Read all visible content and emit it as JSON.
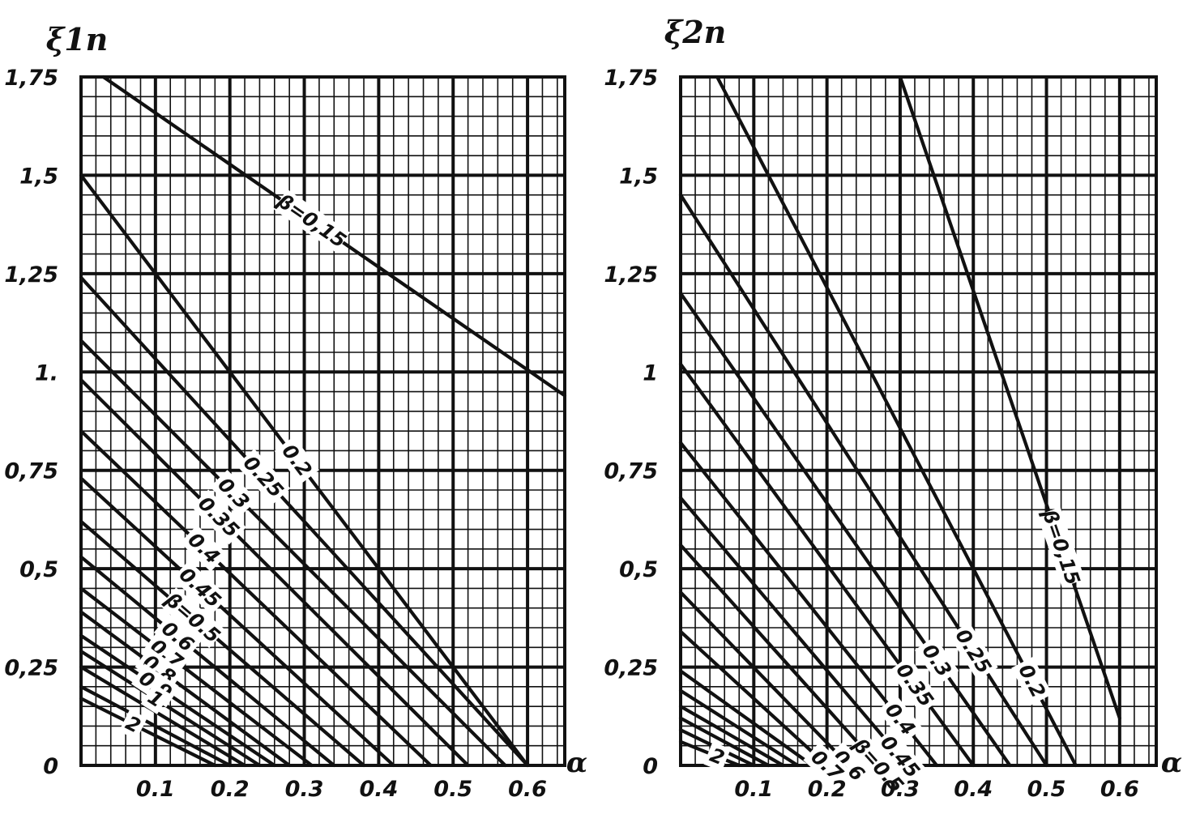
{
  "chart_data": [
    {
      "type": "line",
      "title": "",
      "ylabel": "ξ1п",
      "xlabel": "α",
      "xlim": [
        0,
        0.65
      ],
      "ylim": [
        0,
        1.75
      ],
      "x_ticks": [
        "0.1",
        "0.2",
        "0.3",
        "0.4",
        "0.5",
        "0.6"
      ],
      "y_ticks": [
        "0",
        "0,25",
        "0,5",
        "0,75",
        "1.",
        "1,25",
        "1,5",
        "1,75"
      ],
      "grid": true,
      "series": [
        {
          "label": "β=0,15",
          "x": [
            0.03,
            0.65
          ],
          "y": [
            1.75,
            0.94
          ]
        },
        {
          "label": "0.2",
          "x": [
            0.0,
            0.6
          ],
          "y": [
            1.5,
            0.0
          ]
        },
        {
          "label": "0.25",
          "x": [
            0.0,
            0.6
          ],
          "y": [
            1.24,
            0.0
          ]
        },
        {
          "label": "0.3",
          "x": [
            0.0,
            0.57
          ],
          "y": [
            1.08,
            0.0
          ]
        },
        {
          "label": "0.35",
          "x": [
            0.0,
            0.52
          ],
          "y": [
            0.98,
            0.0
          ]
        },
        {
          "label": "0.4",
          "x": [
            0.0,
            0.47
          ],
          "y": [
            0.85,
            0.0
          ]
        },
        {
          "label": "0.45",
          "x": [
            0.0,
            0.42
          ],
          "y": [
            0.73,
            0.0
          ]
        },
        {
          "label": "β=0.5",
          "x": [
            0.0,
            0.38
          ],
          "y": [
            0.62,
            0.0
          ]
        },
        {
          "label": "0.6",
          "x": [
            0.0,
            0.34
          ],
          "y": [
            0.53,
            0.0
          ]
        },
        {
          "label": "0.7",
          "x": [
            0.0,
            0.31
          ],
          "y": [
            0.45,
            0.0
          ]
        },
        {
          "label": "0.8",
          "x": [
            0.0,
            0.28
          ],
          "y": [
            0.39,
            0.0
          ]
        },
        {
          "label": "0.9",
          "x": [
            0.0,
            0.26
          ],
          "y": [
            0.33,
            0.0
          ]
        },
        {
          "label": "1",
          "x": [
            0.0,
            0.24
          ],
          "y": [
            0.29,
            0.0
          ]
        },
        {
          "label": "",
          "x": [
            0.0,
            0.22
          ],
          "y": [
            0.25,
            0.0
          ]
        },
        {
          "label": "",
          "x": [
            0.0,
            0.2
          ],
          "y": [
            0.2,
            0.0
          ]
        },
        {
          "label": "2",
          "x": [
            0.0,
            0.18
          ],
          "y": [
            0.17,
            0.0
          ]
        }
      ]
    },
    {
      "type": "line",
      "title": "",
      "ylabel": "ξ2п",
      "xlabel": "α",
      "xlim": [
        0,
        0.65
      ],
      "ylim": [
        0,
        1.75
      ],
      "x_ticks": [
        "0.1",
        "0.2",
        "0.3",
        "0.4",
        "0.5",
        "0.6"
      ],
      "y_ticks": [
        "0",
        "0,25",
        "0,5",
        "0,75",
        "1",
        "1,25",
        "1,5",
        "1,75"
      ],
      "grid": true,
      "series": [
        {
          "label": "β=0,15",
          "x": [
            0.3,
            0.6
          ],
          "y": [
            1.75,
            0.12
          ]
        },
        {
          "label": "0.2",
          "x": [
            0.05,
            0.54
          ],
          "y": [
            1.75,
            0.0
          ]
        },
        {
          "label": "0.25",
          "x": [
            0.0,
            0.5
          ],
          "y": [
            1.45,
            0.0
          ]
        },
        {
          "label": "0.3",
          "x": [
            0.0,
            0.45
          ],
          "y": [
            1.2,
            0.0
          ]
        },
        {
          "label": "0.35",
          "x": [
            0.0,
            0.4
          ],
          "y": [
            1.02,
            0.0
          ]
        },
        {
          "label": "0.4",
          "x": [
            0.0,
            0.35
          ],
          "y": [
            0.82,
            0.0
          ]
        },
        {
          "label": "0.45",
          "x": [
            0.0,
            0.31
          ],
          "y": [
            0.68,
            0.0
          ]
        },
        {
          "label": "β=0.5",
          "x": [
            0.0,
            0.27
          ],
          "y": [
            0.56,
            0.0
          ]
        },
        {
          "label": "0.6",
          "x": [
            0.0,
            0.23
          ],
          "y": [
            0.44,
            0.0
          ]
        },
        {
          "label": "0.7",
          "x": [
            0.0,
            0.2
          ],
          "y": [
            0.34,
            0.0
          ]
        },
        {
          "label": "",
          "x": [
            0.0,
            0.18
          ],
          "y": [
            0.24,
            0.0
          ]
        },
        {
          "label": "",
          "x": [
            0.0,
            0.16
          ],
          "y": [
            0.19,
            0.0
          ]
        },
        {
          "label": "",
          "x": [
            0.0,
            0.14
          ],
          "y": [
            0.15,
            0.0
          ]
        },
        {
          "label": "",
          "x": [
            0.0,
            0.12
          ],
          "y": [
            0.12,
            0.0
          ]
        },
        {
          "label": "",
          "x": [
            0.0,
            0.1
          ],
          "y": [
            0.09,
            0.0
          ]
        },
        {
          "label": "2",
          "x": [
            0.0,
            0.08
          ],
          "y": [
            0.06,
            0.0
          ]
        }
      ]
    }
  ]
}
